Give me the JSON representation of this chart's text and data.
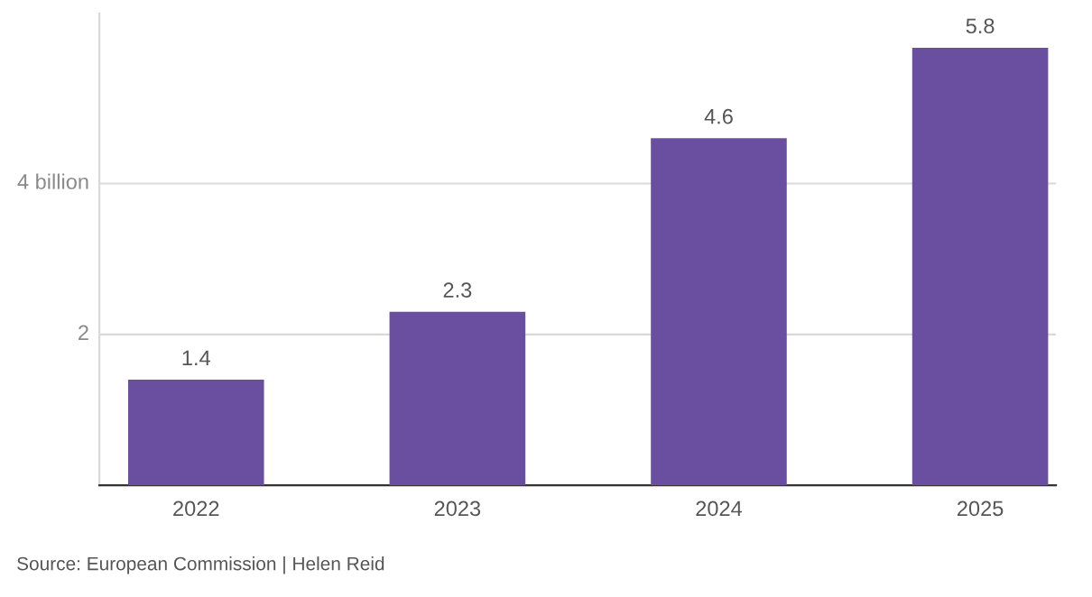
{
  "chart_data": {
    "type": "bar",
    "categories": [
      "2022",
      "2023",
      "2024",
      "2025"
    ],
    "values": [
      1.4,
      2.3,
      4.6,
      5.8
    ],
    "color": "#6a4fa0",
    "ylim": [
      0,
      6.25
    ],
    "yticks": [
      {
        "value": 2,
        "label": "2"
      },
      {
        "value": 4,
        "label": "4 billion"
      }
    ],
    "grid": "y",
    "data_labels": true,
    "annotations": [
      "Source: European Commission | Helen Reid"
    ]
  }
}
